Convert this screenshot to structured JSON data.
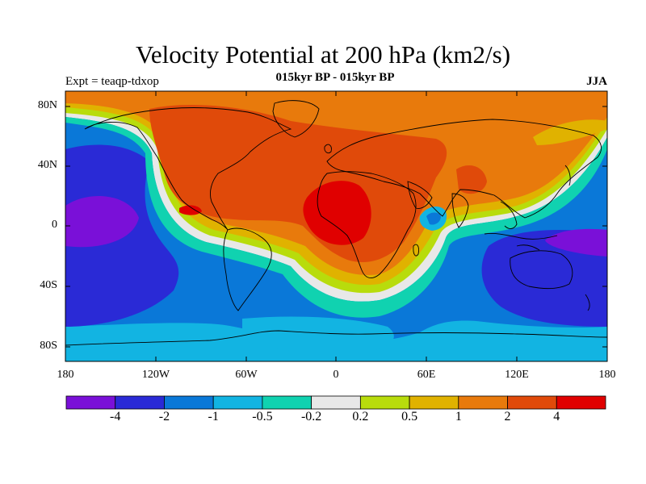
{
  "title": "Velocity Potential at 200 hPa (km2/s)",
  "subtitle": "015kyr BP - 015kyr BP",
  "experiment": "Expt = teaqp-tdxop",
  "season": "JJA",
  "map": {
    "projection": "cylindrical-equidistant",
    "lon_range": [
      -180,
      180
    ],
    "lat_range": [
      -90,
      90
    ],
    "y_ticks": [
      "80N",
      "40N",
      "0",
      "40S",
      "80S"
    ],
    "x_ticks": [
      "180",
      "120W",
      "60W",
      "0",
      "60E",
      "120E",
      "180"
    ],
    "colors": {
      "lt_-4": "#7a10d8",
      "-4_-2": "#2a2ad6",
      "-2_-1": "#0a78d8",
      "-1_-0.5": "#12b4e2",
      "-0.5_-0.2": "#10d2b0",
      "-0.2_0.2": "#e8e8e8",
      "0.2_0.5": "#b8dc0c",
      "0.5_1": "#e0b200",
      "1_2": "#e87a0c",
      "2_4": "#e04a0a",
      "gt_4": "#e00000"
    }
  },
  "colorbar": {
    "labels": [
      "-4",
      "-2",
      "-1",
      "-0.5",
      "-0.2",
      "0.2",
      "0.5",
      "1",
      "2",
      "4"
    ],
    "colors": [
      "#7a10d8",
      "#2a2ad6",
      "#0a78d8",
      "#12b4e2",
      "#10d2b0",
      "#e8e8e8",
      "#b8dc0c",
      "#e0b200",
      "#e87a0c",
      "#e04a0a",
      "#e00000"
    ]
  }
}
